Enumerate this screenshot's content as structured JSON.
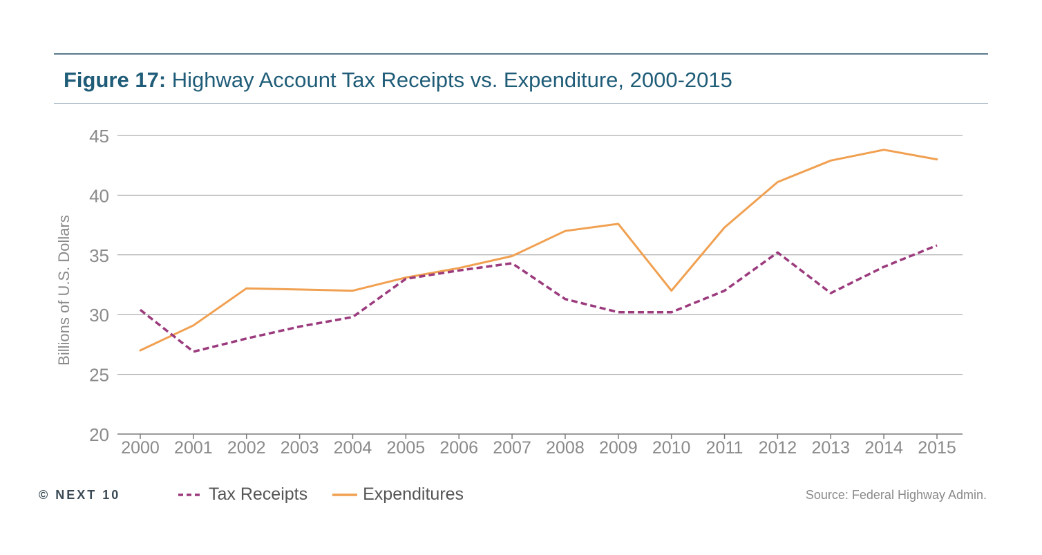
{
  "header": {
    "figure_label": "Figure 17:",
    "title_text": "Highway Account Tax Receipts vs. Expenditure, 2000-2015"
  },
  "footer": {
    "copyright": "© NEXT 10",
    "source": "Source: Federal Highway Admin."
  },
  "chart_data": {
    "type": "line",
    "title": "Figure 17: Highway Account Tax Receipts vs. Expenditure, 2000-2015",
    "xlabel": "",
    "ylabel": "Billions of U.S. Dollars",
    "ylim": [
      20,
      45
    ],
    "yticks": [
      20,
      25,
      30,
      35,
      40,
      45
    ],
    "grid": true,
    "legend_position": "bottom",
    "categories": [
      "2000",
      "2001",
      "2002",
      "2003",
      "2004",
      "2005",
      "2006",
      "2007",
      "2008",
      "2009",
      "2010",
      "2011",
      "2012",
      "2013",
      "2014",
      "2015"
    ],
    "series": [
      {
        "name": "Tax Receipts",
        "color": "#9b3a7d",
        "dash": true,
        "values": [
          30.4,
          26.9,
          28.0,
          29.0,
          29.8,
          33.0,
          33.7,
          34.3,
          31.3,
          30.2,
          30.2,
          32.0,
          35.2,
          31.8,
          34.0,
          35.8
        ]
      },
      {
        "name": "Expenditures",
        "color": "#f0a050",
        "dash": false,
        "values": [
          27.0,
          29.1,
          32.2,
          32.1,
          32.0,
          33.1,
          33.9,
          34.9,
          37.0,
          37.6,
          32.0,
          37.3,
          41.1,
          42.9,
          43.8,
          43.0
        ]
      }
    ]
  }
}
